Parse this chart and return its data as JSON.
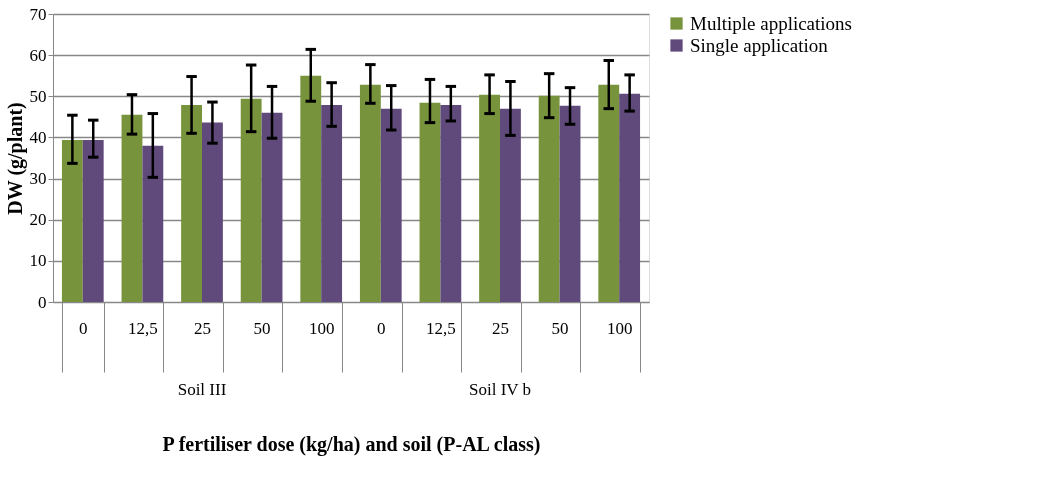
{
  "chart_data": {
    "type": "bar",
    "xlabel": "P fertiliser dose (kg/ha) and soil (P-AL class)",
    "ylabel": "DW (g/plant)",
    "categories": [
      "0",
      "12,5",
      "25",
      "50",
      "100",
      "0",
      "12,5",
      "25",
      "50",
      "100"
    ],
    "annotations": [
      "Soil III",
      "Soil IV b"
    ],
    "series": [
      {
        "name": "Multiple applications",
        "color": "#77933c",
        "values": [
          39.4,
          45.5,
          47.9,
          49.4,
          55.0,
          52.8,
          48.4,
          50.4,
          50.1,
          52.8
        ],
        "errors": [
          [
            33.7,
            45.4
          ],
          [
            40.8,
            50.4
          ],
          [
            41.0,
            54.8
          ],
          [
            41.4,
            57.6
          ],
          [
            48.8,
            61.4
          ],
          [
            48.3,
            57.7
          ],
          [
            43.6,
            54.1
          ],
          [
            45.8,
            55.2
          ],
          [
            44.8,
            55.5
          ],
          [
            47.0,
            58.7
          ]
        ]
      },
      {
        "name": "Single application",
        "color": "#604a7b",
        "values": [
          39.4,
          38.0,
          43.6,
          46.0,
          47.9,
          47.0,
          47.9,
          47.0,
          47.7,
          50.6
        ],
        "errors": [
          [
            35.2,
            44.2
          ],
          [
            30.3,
            45.8
          ],
          [
            38.6,
            48.6
          ],
          [
            39.8,
            52.4
          ],
          [
            42.7,
            53.3
          ],
          [
            41.8,
            52.6
          ],
          [
            44.0,
            52.4
          ],
          [
            40.5,
            53.6
          ],
          [
            43.2,
            52.1
          ],
          [
            46.4,
            55.2
          ]
        ]
      }
    ],
    "ylim": [
      0,
      70
    ],
    "yticks": [
      0,
      10,
      20,
      30,
      40,
      50,
      60,
      70
    ],
    "grid": "y",
    "legend": "right"
  }
}
